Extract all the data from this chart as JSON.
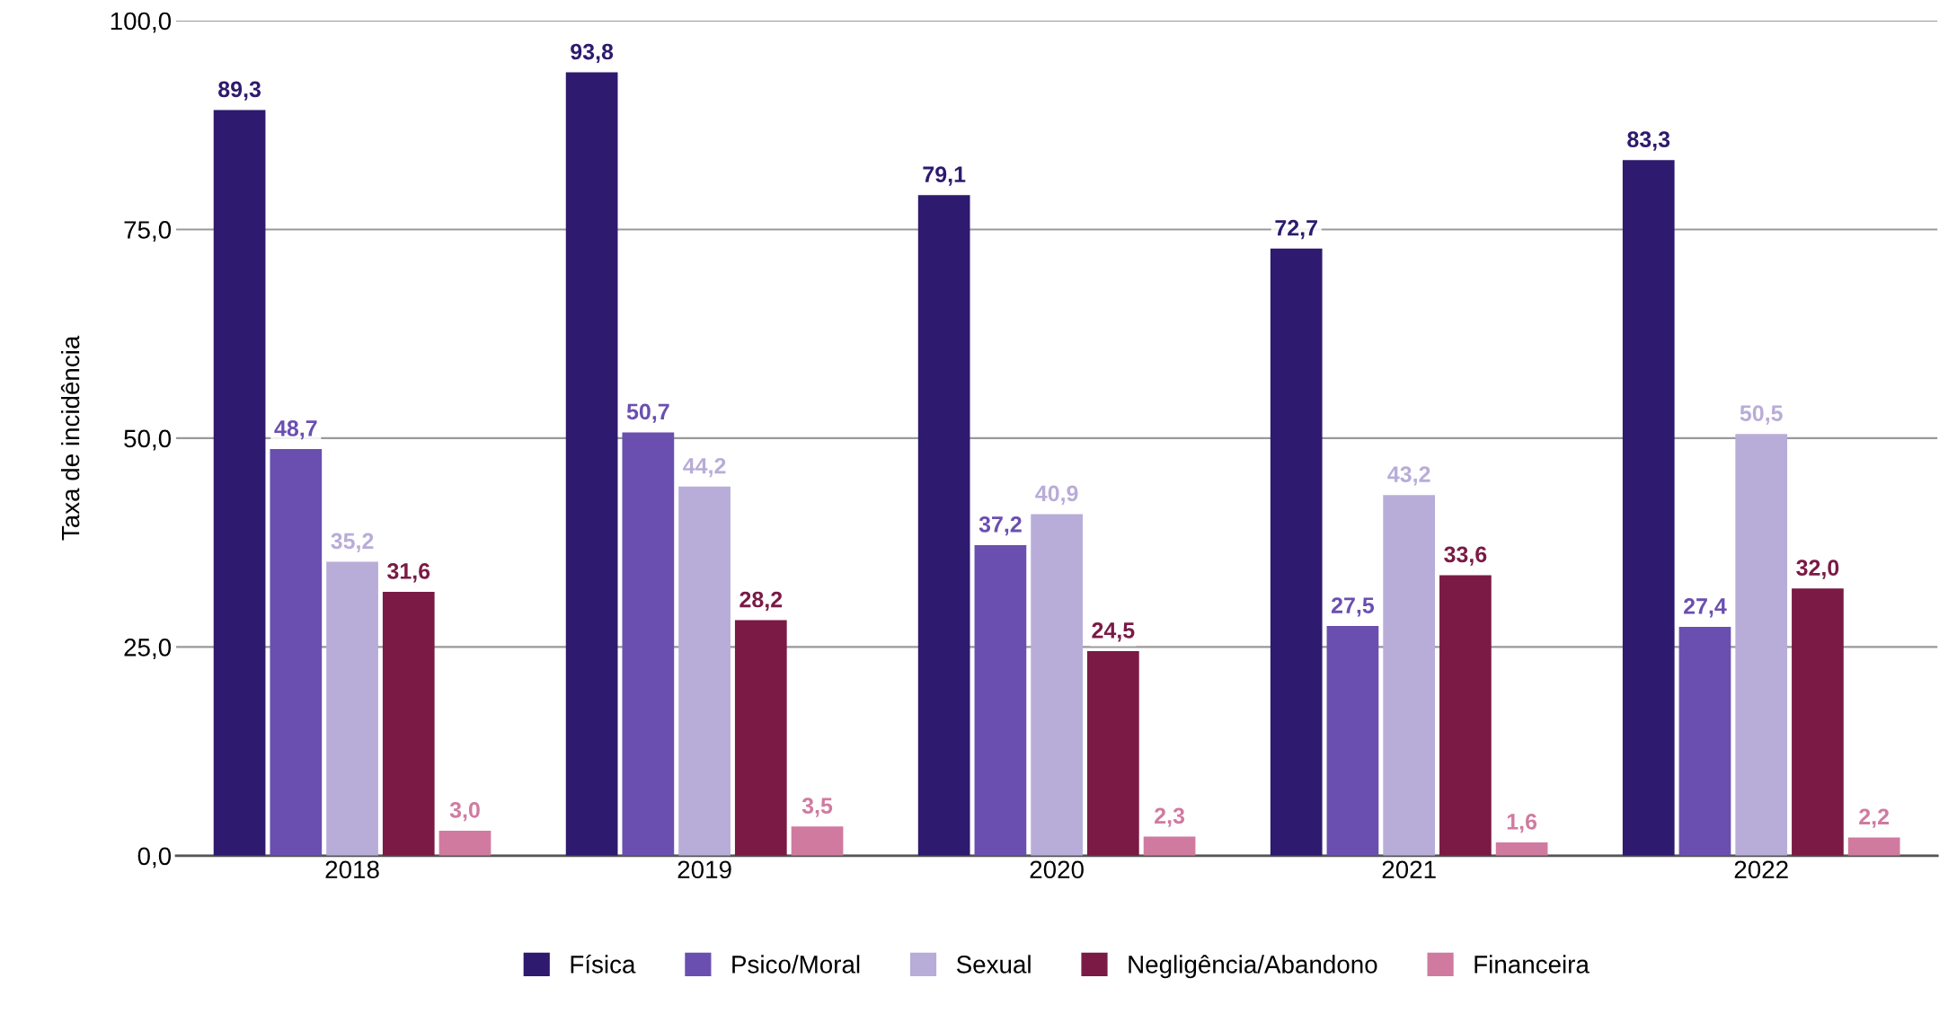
{
  "chart_data": {
    "type": "bar",
    "ylabel": "Taxa de incidência",
    "categories": [
      "2018",
      "2019",
      "2020",
      "2021",
      "2022"
    ],
    "series": [
      {
        "name": "Física",
        "color": "#2e1a6e",
        "values": [
          89.3,
          93.8,
          79.1,
          72.7,
          83.3
        ],
        "value_labels": [
          "89,3",
          "93,8",
          "79,1",
          "72,7",
          "83,3"
        ]
      },
      {
        "name": "Psico/Moral",
        "color": "#6a4fb0",
        "values": [
          48.7,
          50.7,
          37.2,
          27.5,
          27.4
        ],
        "value_labels": [
          "48,7",
          "50,7",
          "37,2",
          "27,5",
          "27,4"
        ]
      },
      {
        "name": "Sexual",
        "color": "#b8acd8",
        "values": [
          35.2,
          44.2,
          40.9,
          43.2,
          50.5
        ],
        "value_labels": [
          "35,2",
          "44,2",
          "40,9",
          "43,2",
          "50,5"
        ]
      },
      {
        "name": "Negligência/Abandono",
        "color": "#7a1a45",
        "values": [
          31.6,
          28.2,
          24.5,
          33.6,
          32.0
        ],
        "value_labels": [
          "31,6",
          "28,2",
          "24,5",
          "33,6",
          "32,0"
        ]
      },
      {
        "name": "Financeira",
        "color": "#d07aa0",
        "values": [
          3.0,
          3.5,
          2.3,
          1.6,
          2.2
        ],
        "value_labels": [
          "3,0",
          "3,5",
          "2,3",
          "1,6",
          "2,2"
        ]
      }
    ],
    "ylim": [
      0,
      100
    ],
    "yticks": [
      {
        "value": 0,
        "label": "0,0"
      },
      {
        "value": 25,
        "label": "25,0"
      },
      {
        "value": 50,
        "label": "50,0"
      },
      {
        "value": 75,
        "label": "75,0"
      },
      {
        "value": 100,
        "label": "100,0"
      }
    ],
    "grid": "y",
    "legend": "bottom"
  }
}
